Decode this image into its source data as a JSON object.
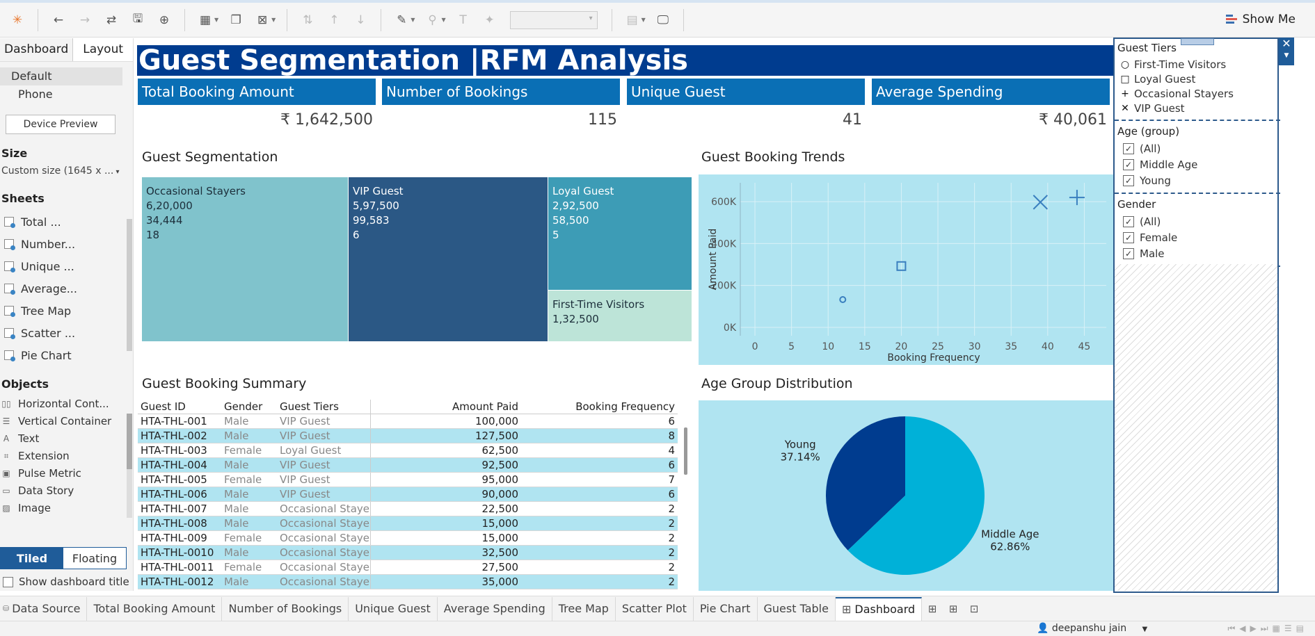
{
  "toolbar": {
    "show_me_label": "Show Me"
  },
  "left_panel": {
    "tabs": [
      "Dashboard",
      "Layout"
    ],
    "devices": [
      "Default",
      "Phone"
    ],
    "device_preview_label": "Device Preview",
    "size_title": "Size",
    "size_value": "Custom size (1645 x ...",
    "sheets_title": "Sheets",
    "sheets": [
      "Total ...",
      "Number...",
      "Unique ...",
      "Average...",
      "Tree Map",
      "Scatter ...",
      "Pie Chart"
    ],
    "objects_title": "Objects",
    "objects": [
      {
        "label": "Horizontal Cont...",
        "icon": "horizontal-container-icon"
      },
      {
        "label": "Vertical Container",
        "icon": "vertical-container-icon"
      },
      {
        "label": "Text",
        "icon": "text-icon"
      },
      {
        "label": "Extension",
        "icon": "extension-icon"
      },
      {
        "label": "Pulse Metric",
        "icon": "pulse-metric-icon"
      },
      {
        "label": "Data Story",
        "icon": "data-story-icon"
      },
      {
        "label": "Image",
        "icon": "image-icon"
      }
    ],
    "tiled_label": "Tiled",
    "floating_label": "Floating",
    "show_title_label": "Show dashboard title"
  },
  "dashboard": {
    "title": "Guest Segmentation |RFM Analysis",
    "kpis": [
      {
        "label": "Total Booking Amount",
        "value": "₹ 1,642,500"
      },
      {
        "label": "Number of Bookings",
        "value": "115"
      },
      {
        "label": "Unique Guest",
        "value": "41"
      },
      {
        "label": "Average Spending",
        "value": "₹ 40,061"
      }
    ],
    "treemap_title": "Guest Segmentation",
    "treemap": [
      {
        "name": "Occasional Stayers",
        "lines": [
          "6,20,000",
          "34,444",
          "18"
        ],
        "color": "#80c3cc"
      },
      {
        "name": "VIP Guest",
        "lines": [
          "5,97,500",
          "99,583",
          "6"
        ],
        "color": "#2b5885"
      },
      {
        "name": "Loyal Guest",
        "lines": [
          "2,92,500",
          "58,500",
          "5"
        ],
        "color": "#3d9cb6"
      },
      {
        "name": "First-Time Visitors",
        "lines": [
          "1,32,500"
        ],
        "color": "#bde4d8"
      }
    ],
    "scatter_title": "Guest Booking Trends",
    "table_title": "Guest Booking Summary",
    "pie_title": "Age Group Distribution"
  },
  "chart_data": [
    {
      "type": "scatter",
      "title": "Guest Booking Trends",
      "xlabel": "Booking Frequency",
      "ylabel": "Amount Paid",
      "xlim": [
        -2,
        48
      ],
      "ylim": [
        -40000,
        690000
      ],
      "xticks": [
        0,
        5,
        10,
        15,
        20,
        25,
        30,
        35,
        40,
        45
      ],
      "yticks": [
        0,
        200000,
        400000,
        600000
      ],
      "ytick_labels": [
        "0K",
        "200K",
        "400K",
        "600K"
      ],
      "grid": true,
      "series": [
        {
          "name": "First-Time Visitors",
          "marker": "circle",
          "x": [
            12
          ],
          "y": [
            132500
          ]
        },
        {
          "name": "Loyal Guest",
          "marker": "square",
          "x": [
            20
          ],
          "y": [
            292500
          ]
        },
        {
          "name": "Occasional Stayers",
          "marker": "plus",
          "x": [
            44
          ],
          "y": [
            620000
          ]
        },
        {
          "name": "VIP Guest",
          "marker": "cross",
          "x": [
            39
          ],
          "y": [
            597500
          ]
        }
      ],
      "color": "#3a7fbf"
    },
    {
      "type": "pie",
      "title": "Age Group Distribution",
      "categories": [
        "Young",
        "Middle Age"
      ],
      "values": [
        37.14,
        62.86
      ],
      "labels": [
        "37.14%",
        "62.86%"
      ],
      "colors": [
        "#003c8f",
        "#00b1d8"
      ]
    },
    {
      "type": "table",
      "title": "Guest Booking Summary",
      "columns": [
        "Guest ID",
        "Gender",
        "Guest Tiers",
        "Amount Paid",
        "Booking Frequency"
      ],
      "rows": [
        [
          "HTA-THL-001",
          "Male",
          "VIP Guest",
          "100,000",
          "6"
        ],
        [
          "HTA-THL-002",
          "Male",
          "VIP Guest",
          "127,500",
          "8"
        ],
        [
          "HTA-THL-003",
          "Female",
          "Loyal Guest",
          "62,500",
          "4"
        ],
        [
          "HTA-THL-004",
          "Male",
          "VIP Guest",
          "92,500",
          "6"
        ],
        [
          "HTA-THL-005",
          "Female",
          "VIP Guest",
          "95,000",
          "7"
        ],
        [
          "HTA-THL-006",
          "Male",
          "VIP Guest",
          "90,000",
          "6"
        ],
        [
          "HTA-THL-007",
          "Male",
          "Occasional Stayers",
          "22,500",
          "2"
        ],
        [
          "HTA-THL-008",
          "Male",
          "Occasional Stayers",
          "15,000",
          "2"
        ],
        [
          "HTA-THL-009",
          "Female",
          "Occasional Stayers",
          "15,000",
          "2"
        ],
        [
          "HTA-THL-0010",
          "Male",
          "Occasional Stayers",
          "32,500",
          "2"
        ],
        [
          "HTA-THL-0011",
          "Female",
          "Occasional Stayers",
          "27,500",
          "2"
        ],
        [
          "HTA-THL-0012",
          "Male",
          "Occasional Stayers",
          "35,000",
          "2"
        ]
      ]
    }
  ],
  "filters": {
    "guest_tiers_title": "Guest Tiers",
    "guest_tiers": [
      {
        "label": "First-Time Visitors",
        "shape": "○"
      },
      {
        "label": "Loyal Guest",
        "shape": "□"
      },
      {
        "label": "Occasional Stayers",
        "shape": "+"
      },
      {
        "label": "VIP Guest",
        "shape": "✕"
      }
    ],
    "age_title": "Age (group)",
    "age_items": [
      "(All)",
      "Middle Age",
      "Young"
    ],
    "gender_title": "Gender",
    "gender_items": [
      "(All)",
      "Female",
      "Male"
    ]
  },
  "bottom_tabs": [
    "Data Source",
    "Total Booking Amount",
    "Number of Bookings",
    "Unique Guest",
    "Average Spending",
    "Tree Map",
    "Scatter Plot",
    "Pie Chart",
    "Guest Table",
    "Dashboard"
  ],
  "status": {
    "user": "deepanshu jain"
  }
}
